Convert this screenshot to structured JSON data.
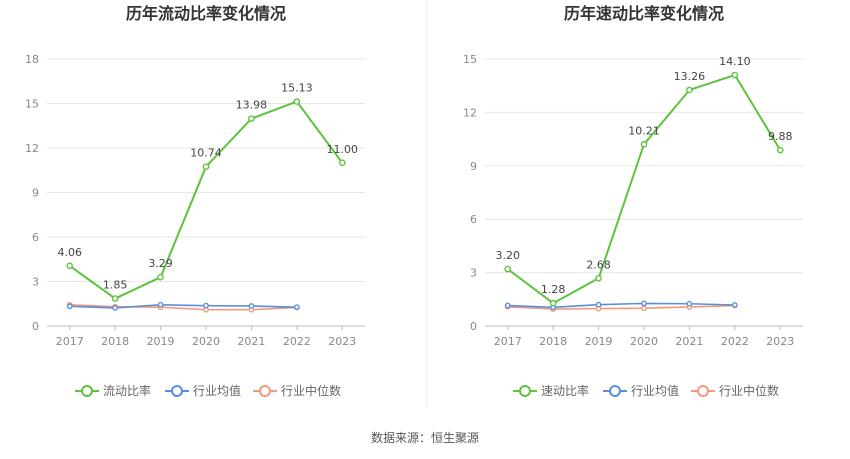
{
  "colors": {
    "main": "#5cc43c",
    "avg": "#5b8fdc",
    "median": "#f39a7c"
  },
  "source": "数据来源：恒生聚源",
  "chart_data": [
    {
      "type": "line",
      "title": "历年流动比率变化情况",
      "categories": [
        "2017",
        "2018",
        "2019",
        "2020",
        "2021",
        "2022",
        "2023"
      ],
      "yticks": [
        "0",
        "3",
        "6",
        "9",
        "12",
        "15",
        "18"
      ],
      "ylim": [
        0,
        18
      ],
      "grid": true,
      "legend_position": "bottom",
      "series": [
        {
          "name": "流动比率",
          "color_key": "main",
          "values": [
            4.06,
            1.85,
            3.29,
            10.74,
            13.98,
            15.13,
            11.0
          ],
          "labels": [
            "4.06",
            "1.85",
            "3.29",
            "10.74",
            "13.98",
            "15.13",
            "11.00"
          ]
        },
        {
          "name": "行业均值",
          "color_key": "avg",
          "values": [
            1.33,
            1.22,
            1.43,
            1.37,
            1.35,
            1.27,
            null
          ]
        },
        {
          "name": "行业中位数",
          "color_key": "median",
          "values": [
            1.43,
            1.3,
            1.27,
            1.1,
            1.1,
            1.25,
            null
          ]
        }
      ]
    },
    {
      "type": "line",
      "title": "历年速动比率变化情况",
      "categories": [
        "2017",
        "2018",
        "2019",
        "2020",
        "2021",
        "2022",
        "2023"
      ],
      "yticks": [
        "0",
        "3",
        "6",
        "9",
        "12",
        "15"
      ],
      "ylim": [
        0,
        15
      ],
      "grid": true,
      "legend_position": "bottom",
      "series": [
        {
          "name": "速动比率",
          "color_key": "main",
          "values": [
            3.2,
            1.28,
            2.68,
            10.21,
            13.26,
            14.1,
            9.88
          ],
          "labels": [
            "3.20",
            "1.28",
            "2.68",
            "10.21",
            "13.26",
            "14.10",
            "9.88"
          ]
        },
        {
          "name": "行业均值",
          "color_key": "avg",
          "values": [
            1.15,
            1.05,
            1.2,
            1.27,
            1.25,
            1.18,
            null
          ]
        },
        {
          "name": "行业中位数",
          "color_key": "median",
          "values": [
            1.08,
            0.95,
            0.98,
            1.0,
            1.07,
            1.15,
            null
          ]
        }
      ]
    }
  ]
}
